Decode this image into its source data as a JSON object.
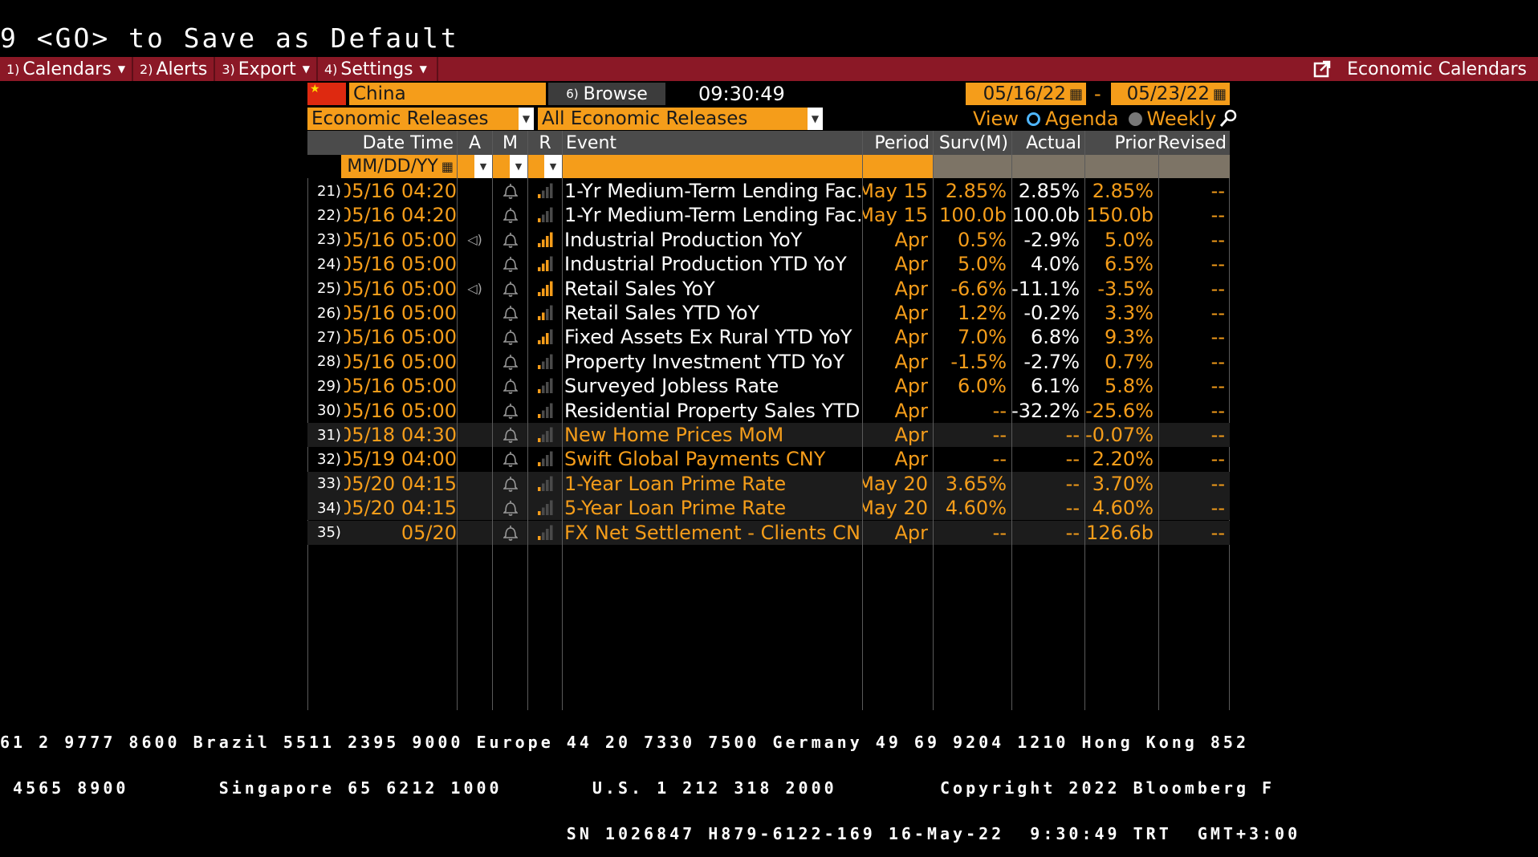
{
  "command_line": "9 <GO> to Save as Default",
  "menu": [
    {
      "num": "1)",
      "label": "Calendars",
      "caret": true
    },
    {
      "num": "2)",
      "label": "Alerts",
      "caret": false
    },
    {
      "num": "3)",
      "label": "Export",
      "caret": true
    },
    {
      "num": "4)",
      "label": "Settings",
      "caret": true
    }
  ],
  "econ_link": "Economic Calendars",
  "country": "China",
  "browse": {
    "num": "6)",
    "label": "Browse"
  },
  "time": "09:30:49",
  "date_from": "05/16/22",
  "date_sep": "-",
  "date_to": "05/23/22",
  "calendar_type": "Economic Releases",
  "release_filter": "All Economic Releases",
  "view": {
    "label": "View",
    "agenda": "Agenda",
    "weekly": "Weekly"
  },
  "columns": {
    "datetime": "Date Time",
    "a": "A",
    "m": "M",
    "r": "R",
    "event": "Event",
    "period": "Period",
    "surv": "Surv(M)",
    "actual": "Actual",
    "prior": "Prior",
    "revised": "Revised"
  },
  "date_filter_placeholder": "MM/DD/YY",
  "rows": [
    {
      "idx": "21)",
      "dt": "05/16 04:20",
      "audio": false,
      "rel": 1,
      "event": "1-Yr Medium-Term Lending Fac…",
      "period": "May 15",
      "surv": "2.85%",
      "actual": "2.85%",
      "prior": "2.85%",
      "revised": "--",
      "released": true,
      "shade": false
    },
    {
      "idx": "22)",
      "dt": "05/16 04:20",
      "audio": false,
      "rel": 1,
      "event": "1-Yr Medium-Term Lending Fac…",
      "period": "May 15",
      "surv": "100.0b",
      "actual": "100.0b",
      "prior": "150.0b",
      "revised": "--",
      "released": true,
      "shade": false
    },
    {
      "idx": "23)",
      "dt": "05/16 05:00",
      "audio": true,
      "rel": 4,
      "event": "Industrial Production YoY",
      "period": "Apr",
      "surv": "0.5%",
      "actual": "-2.9%",
      "prior": "5.0%",
      "revised": "--",
      "released": true,
      "shade": false
    },
    {
      "idx": "24)",
      "dt": "05/16 05:00",
      "audio": false,
      "rel": 3,
      "event": "Industrial Production YTD YoY",
      "period": "Apr",
      "surv": "5.0%",
      "actual": "4.0%",
      "prior": "6.5%",
      "revised": "--",
      "released": true,
      "shade": false
    },
    {
      "idx": "25)",
      "dt": "05/16 05:00",
      "audio": true,
      "rel": 4,
      "event": "Retail Sales YoY",
      "period": "Apr",
      "surv": "-6.6%",
      "actual": "-11.1%",
      "prior": "-3.5%",
      "revised": "--",
      "released": true,
      "shade": false
    },
    {
      "idx": "26)",
      "dt": "05/16 05:00",
      "audio": false,
      "rel": 2,
      "event": "Retail Sales YTD YoY",
      "period": "Apr",
      "surv": "1.2%",
      "actual": "-0.2%",
      "prior": "3.3%",
      "revised": "--",
      "released": true,
      "shade": false
    },
    {
      "idx": "27)",
      "dt": "05/16 05:00",
      "audio": false,
      "rel": 3,
      "event": "Fixed Assets Ex Rural YTD YoY",
      "period": "Apr",
      "surv": "7.0%",
      "actual": "6.8%",
      "prior": "9.3%",
      "revised": "--",
      "released": true,
      "shade": false
    },
    {
      "idx": "28)",
      "dt": "05/16 05:00",
      "audio": false,
      "rel": 1,
      "event": "Property Investment YTD YoY",
      "period": "Apr",
      "surv": "-1.5%",
      "actual": "-2.7%",
      "prior": "0.7%",
      "revised": "--",
      "released": true,
      "shade": false
    },
    {
      "idx": "29)",
      "dt": "05/16 05:00",
      "audio": false,
      "rel": 1,
      "event": "Surveyed Jobless Rate",
      "period": "Apr",
      "surv": "6.0%",
      "actual": "6.1%",
      "prior": "5.8%",
      "revised": "--",
      "released": true,
      "shade": false
    },
    {
      "idx": "30)",
      "dt": "05/16 05:00",
      "audio": false,
      "rel": 1,
      "event": "Residential Property Sales YTD …",
      "period": "Apr",
      "surv": "--",
      "actual": "-32.2%",
      "prior": "-25.6%",
      "revised": "--",
      "released": true,
      "shade": false
    },
    {
      "idx": "31)",
      "dt": "05/18 04:30",
      "audio": false,
      "rel": 1,
      "event": "New Home Prices MoM",
      "period": "Apr",
      "surv": "--",
      "actual": "--",
      "prior": "-0.07%",
      "revised": "--",
      "released": false,
      "shade": true
    },
    {
      "idx": "32)",
      "dt": "05/19 04:00",
      "audio": false,
      "rel": 1,
      "event": "Swift Global Payments CNY",
      "period": "Apr",
      "surv": "--",
      "actual": "--",
      "prior": "2.20%",
      "revised": "--",
      "released": false,
      "shade": false
    },
    {
      "idx": "33)",
      "dt": "05/20 04:15",
      "audio": false,
      "rel": 1,
      "event": "1-Year Loan Prime Rate",
      "period": "May 20",
      "surv": "3.65%",
      "actual": "--",
      "prior": "3.70%",
      "revised": "--",
      "released": false,
      "shade": true
    },
    {
      "idx": "34)",
      "dt": "05/20 04:15",
      "audio": false,
      "rel": 1,
      "event": "5-Year Loan Prime Rate",
      "period": "May 20",
      "surv": "4.60%",
      "actual": "--",
      "prior": "4.60%",
      "revised": "--",
      "released": false,
      "shade": true
    },
    {
      "idx": "35)",
      "dt": "05/20",
      "audio": false,
      "rel": 1,
      "event": "FX Net Settlement - Clients CNY",
      "period": "Apr",
      "surv": "--",
      "actual": "--",
      "prior": "126.6b",
      "revised": "--",
      "released": false,
      "shade": true
    }
  ],
  "footer": {
    "line1": "61 2 9777 8600 Brazil 5511 2395 9000 Europe 44 20 7330 7500 Germany 49 69 9204 1210 Hong Kong 852",
    "line2": " 4565 8900       Singapore 65 6212 1000       U.S. 1 212 318 2000        Copyright 2022 Bloomberg F",
    "line3": "                                            SN 1026847 H879-6122-169 16-May-22  9:30:49 TRT  GMT+3:00"
  },
  "colors": {
    "orange": "#f59d1a",
    "menu_red": "#8b1826",
    "header_gray": "#4b4b4b",
    "shade_row": "#1c1c1c"
  }
}
